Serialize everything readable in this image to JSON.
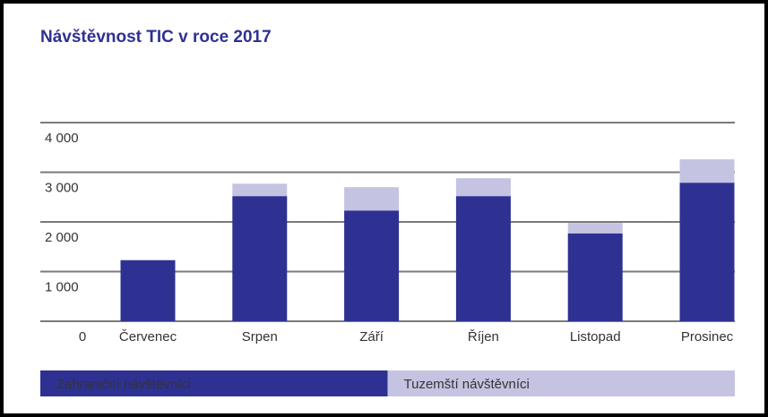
{
  "chart_data": {
    "type": "stacked_bar",
    "title": "Návštěvnost TIC v roce 2017",
    "categories": [
      "Červenec",
      "Srpen",
      "Září",
      "Říjen",
      "Listopad",
      "Prosinec"
    ],
    "series": [
      {
        "name": "Zahraniční návštěvníci",
        "color": "#2e3192",
        "values": [
          1230,
          2520,
          2230,
          2520,
          1770,
          2790
        ]
      },
      {
        "name": "Tuzemští návštěvníci",
        "color": "#c5c3e2",
        "values": [
          0,
          250,
          470,
          360,
          210,
          470
        ]
      }
    ],
    "ylim": [
      0,
      4000
    ],
    "yticks": [
      0,
      {
        "value": 1000,
        "label": "1 000"
      },
      {
        "value": 2000,
        "label": "2 000"
      },
      {
        "value": 3000,
        "label": "3 000"
      },
      {
        "value": 4000,
        "label": "4 000"
      }
    ],
    "grid": true
  }
}
